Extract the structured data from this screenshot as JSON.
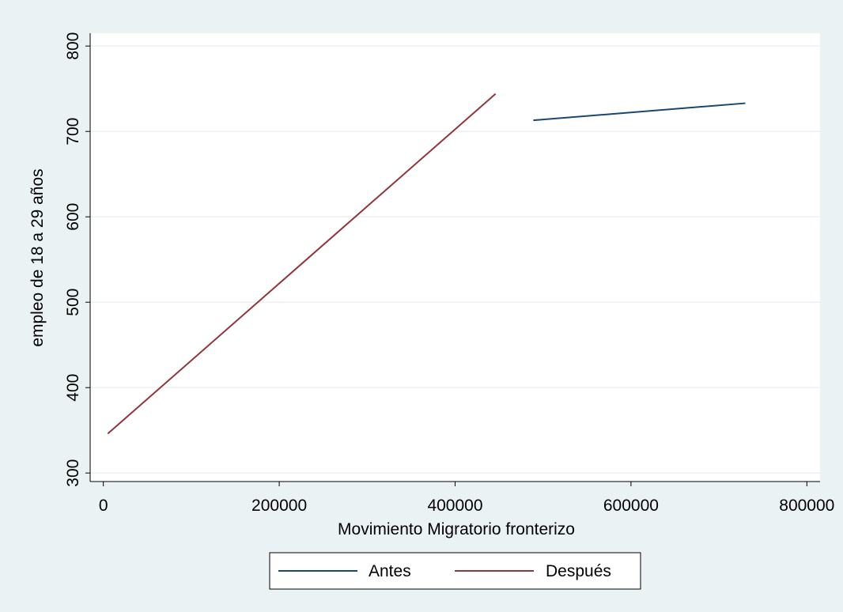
{
  "chart_data": {
    "type": "line",
    "title": "",
    "xlabel": "Movimiento Migratorio fronterizo",
    "ylabel": "empleo de 18 a 29 años",
    "xlim": [
      -15000,
      815000
    ],
    "ylim": [
      290,
      815
    ],
    "xticks": [
      0,
      200000,
      400000,
      600000,
      800000
    ],
    "xtick_labels": [
      "0",
      "200000",
      "400000",
      "600000",
      "800000"
    ],
    "yticks": [
      300,
      400,
      500,
      600,
      700,
      800
    ],
    "ytick_labels": [
      "300",
      "400",
      "500",
      "600",
      "700",
      "800"
    ],
    "grid": true,
    "legend_position": "bottom",
    "series": [
      {
        "name": "Antes",
        "color": "#1a476f",
        "points": [
          [
            489000,
            713
          ],
          [
            730000,
            733
          ]
        ]
      },
      {
        "name": "Después",
        "color": "#90353b",
        "points": [
          [
            5000,
            346
          ],
          [
            446000,
            744
          ]
        ]
      }
    ],
    "colors": {
      "background": "#eaf2f3",
      "plot": "#ffffff",
      "grid": "#eaf2f3"
    }
  }
}
